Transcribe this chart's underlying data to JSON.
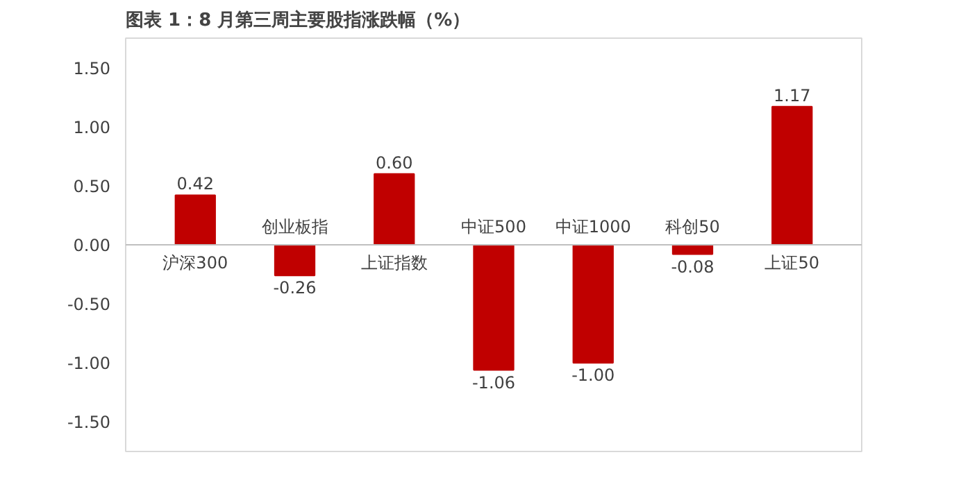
{
  "chart_data": {
    "type": "bar",
    "title": "图表 1：8 月第三周主要股指涨跌幅（%）",
    "categories": [
      "沪深300",
      "创业板指",
      "上证指数",
      "中证500",
      "中证1000",
      "科创50",
      "上证50"
    ],
    "values": [
      0.42,
      -0.26,
      0.6,
      -1.06,
      -1.0,
      -0.08,
      1.17
    ],
    "color": "#c00000",
    "value_labels": [
      "0.42",
      "-0.26",
      "0.60",
      "-1.06",
      "-1.00",
      "-0.08",
      "1.17"
    ],
    "grid": false,
    "ylim": [
      -1.75,
      1.75
    ],
    "yticks": [
      {
        "value": -1.5,
        "label": "-1.50"
      },
      {
        "value": -1.0,
        "label": "-1.00"
      },
      {
        "value": -0.5,
        "label": "-0.50"
      },
      {
        "value": 0,
        "label": "0.00"
      },
      {
        "value": 0.5,
        "label": "0.50"
      },
      {
        "value": 1.0,
        "label": "1.00"
      },
      {
        "value": 1.5,
        "label": "1.50"
      }
    ]
  }
}
